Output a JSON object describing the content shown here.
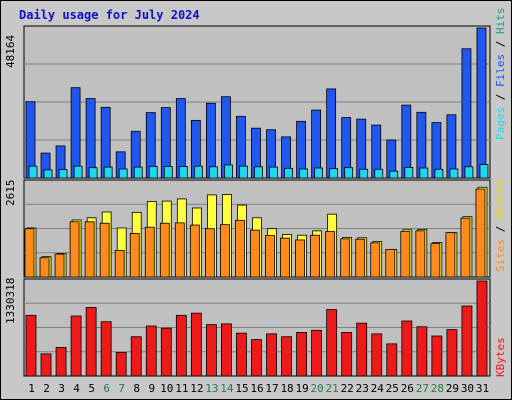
{
  "title": "Daily usage for July 2024",
  "colors": {
    "background": "#c8c8c8",
    "plot_bg": "#c0c0c0",
    "pages": "#1f57f0",
    "files": "#1fd8f0",
    "hits": "#2a9a8a",
    "visits": "#ffff40",
    "sites": "#ff8c1a",
    "kbytes": "#ee1a1a",
    "weekend_label": "#2a7a4a",
    "weekday_label": "#000000",
    "title": "#1010c8"
  },
  "right_labels": {
    "top": [
      "Pages",
      "Files",
      "Hits"
    ],
    "middle": [
      "Sites",
      "Visits"
    ],
    "bottom": [
      "KBytes"
    ]
  },
  "chart_data": [
    {
      "type": "bar",
      "panel": "hits-files-pages",
      "ymax_label": "48164",
      "ylim": [
        0,
        48164
      ],
      "categories": [
        "1",
        "2",
        "3",
        "4",
        "5",
        "6",
        "7",
        "8",
        "9",
        "10",
        "11",
        "12",
        "13",
        "14",
        "15",
        "16",
        "17",
        "18",
        "19",
        "20",
        "21",
        "22",
        "23",
        "24",
        "25",
        "26",
        "27",
        "28",
        "29",
        "30",
        "31"
      ],
      "series": [
        {
          "name": "Pages",
          "values": [
            24500,
            8000,
            10300,
            29000,
            25500,
            22700,
            8400,
            15000,
            21000,
            22600,
            25500,
            18500,
            24000,
            26100,
            19800,
            16000,
            15500,
            13200,
            18200,
            21800,
            28600,
            19400,
            18900,
            17000,
            12200,
            23400,
            21100,
            17800,
            20300,
            41500,
            48164
          ]
        },
        {
          "name": "Files",
          "values": [
            3800,
            2600,
            2700,
            3800,
            3300,
            3500,
            2900,
            3500,
            3700,
            3700,
            3700,
            3800,
            3600,
            4200,
            3800,
            3600,
            3500,
            3100,
            2900,
            3200,
            3000,
            3300,
            2800,
            2800,
            2200,
            3400,
            3200,
            2800,
            2900,
            3600,
            4300
          ]
        },
        {
          "name": "Hits",
          "values": [
            24500,
            8000,
            10300,
            29000,
            25500,
            22700,
            8400,
            15000,
            21000,
            22600,
            25500,
            18500,
            24000,
            26100,
            19800,
            16000,
            15500,
            13200,
            18200,
            21800,
            28600,
            19400,
            18900,
            17000,
            12200,
            23400,
            21100,
            17800,
            20300,
            41500,
            48164
          ]
        }
      ]
    },
    {
      "type": "bar",
      "panel": "visits-sites",
      "ymax_label": "2615",
      "ylim": [
        0,
        2615
      ],
      "categories": [
        "1",
        "2",
        "3",
        "4",
        "5",
        "6",
        "7",
        "8",
        "9",
        "10",
        "11",
        "12",
        "13",
        "14",
        "15",
        "16",
        "17",
        "18",
        "19",
        "20",
        "21",
        "22",
        "23",
        "24",
        "25",
        "26",
        "27",
        "28",
        "29",
        "30",
        "31"
      ],
      "series": [
        {
          "name": "Visits",
          "values": [
            1350,
            560,
            650,
            1570,
            1630,
            1790,
            1350,
            1780,
            2080,
            2090,
            2150,
            1900,
            2260,
            2270,
            1980,
            1630,
            1330,
            1170,
            1150,
            1270,
            1730,
            1090,
            1080,
            980,
            760,
            1300,
            1310,
            950,
            1220,
            1660,
            2470
          ]
        },
        {
          "name": "Sites",
          "values": [
            1330,
            530,
            630,
            1520,
            1520,
            1480,
            730,
            1200,
            1370,
            1480,
            1490,
            1430,
            1330,
            1440,
            1560,
            1290,
            1140,
            1070,
            1020,
            1150,
            1250,
            1050,
            1040,
            940,
            760,
            1250,
            1270,
            920,
            1220,
            1620,
            2420
          ]
        }
      ]
    },
    {
      "type": "bar",
      "panel": "kbytes",
      "ymax_label": "1330318",
      "ylim": [
        0,
        1330318
      ],
      "categories": [
        "1",
        "2",
        "3",
        "4",
        "5",
        "6",
        "7",
        "8",
        "9",
        "10",
        "11",
        "12",
        "13",
        "14",
        "15",
        "16",
        "17",
        "18",
        "19",
        "20",
        "21",
        "22",
        "23",
        "24",
        "25",
        "26",
        "27",
        "28",
        "29",
        "30",
        "31"
      ],
      "series": [
        {
          "name": "KBytes",
          "values": [
            850000,
            310000,
            400000,
            840000,
            960000,
            760000,
            330000,
            550000,
            700000,
            670000,
            850000,
            880000,
            720000,
            730000,
            600000,
            510000,
            590000,
            550000,
            610000,
            640000,
            930000,
            610000,
            740000,
            590000,
            450000,
            770000,
            690000,
            560000,
            650000,
            980000,
            1330318
          ]
        }
      ]
    }
  ],
  "weekend_days": [
    "6",
    "7",
    "13",
    "14",
    "20",
    "21",
    "27",
    "28"
  ]
}
